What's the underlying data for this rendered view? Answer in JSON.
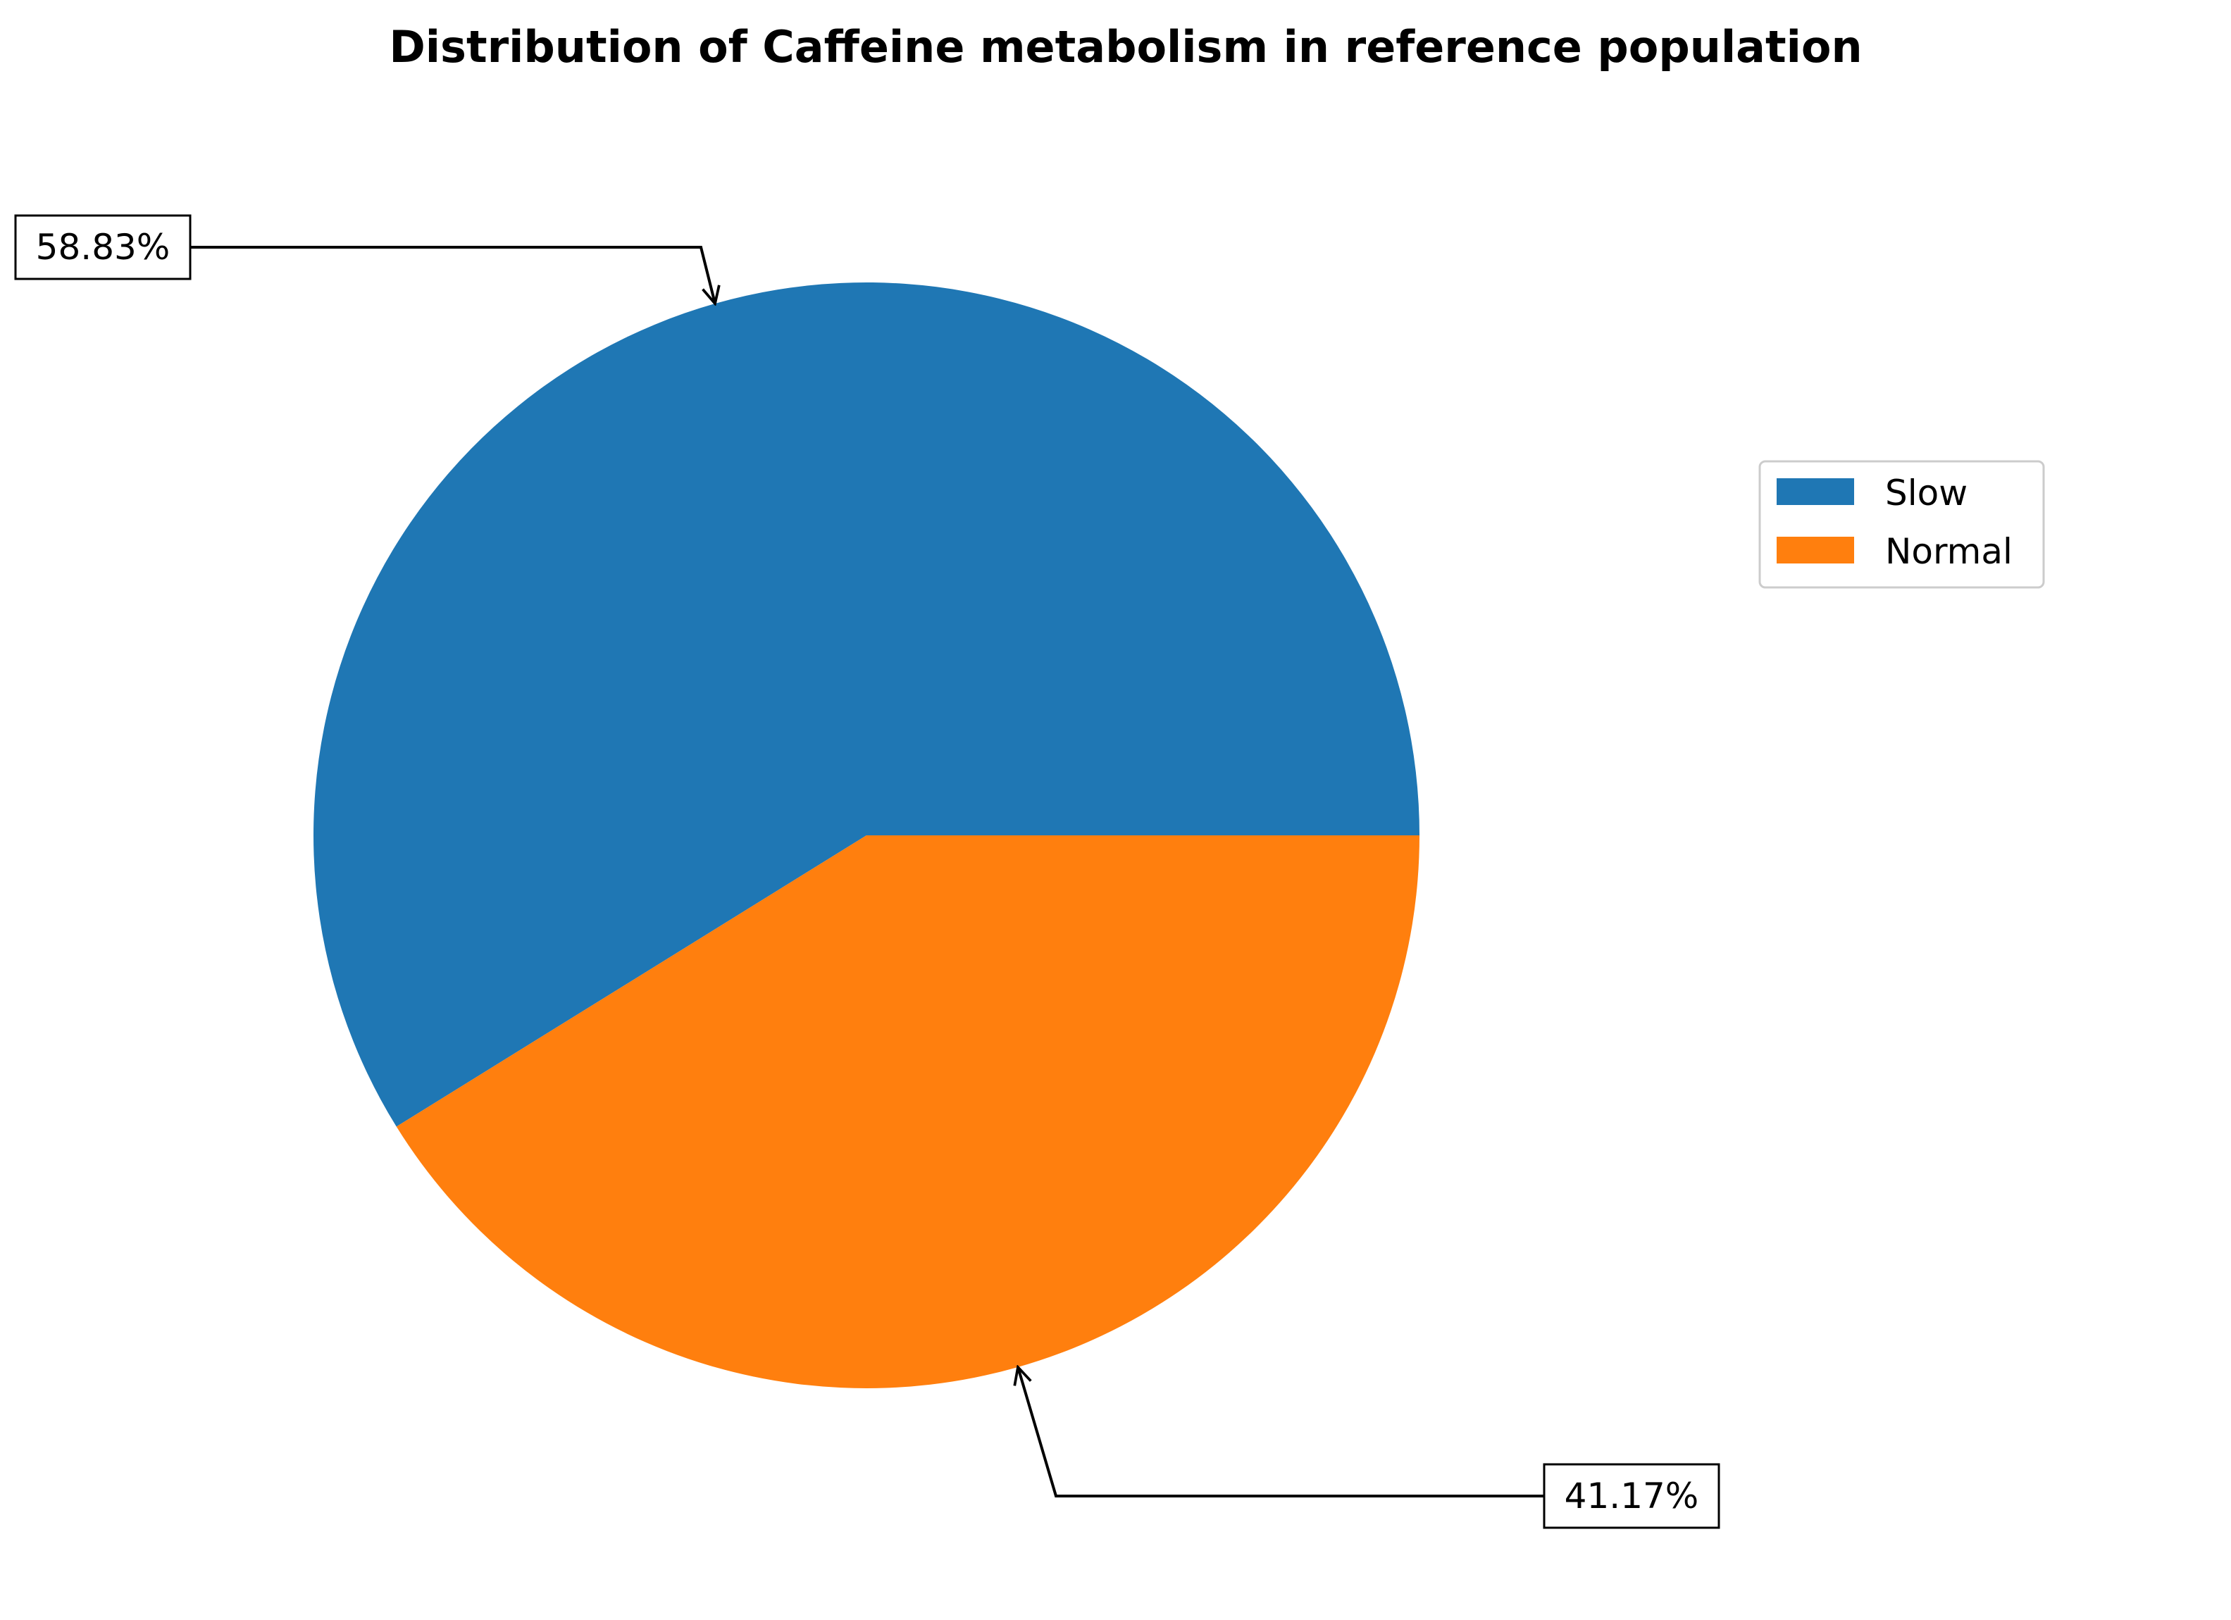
{
  "chart_data": {
    "type": "pie",
    "title": "Distribution of Caffeine metabolism in reference population",
    "slices": [
      {
        "label": "Slow",
        "value": 58.83,
        "display": "58.83%",
        "color": "#1f77b4"
      },
      {
        "label": "Normal",
        "value": 41.17,
        "display": "41.17%",
        "color": "#ff7f0e"
      }
    ],
    "start_angle": 0,
    "direction": "counterclockwise",
    "legend": {
      "position": "right",
      "entries": [
        "Slow",
        "Normal"
      ]
    }
  }
}
